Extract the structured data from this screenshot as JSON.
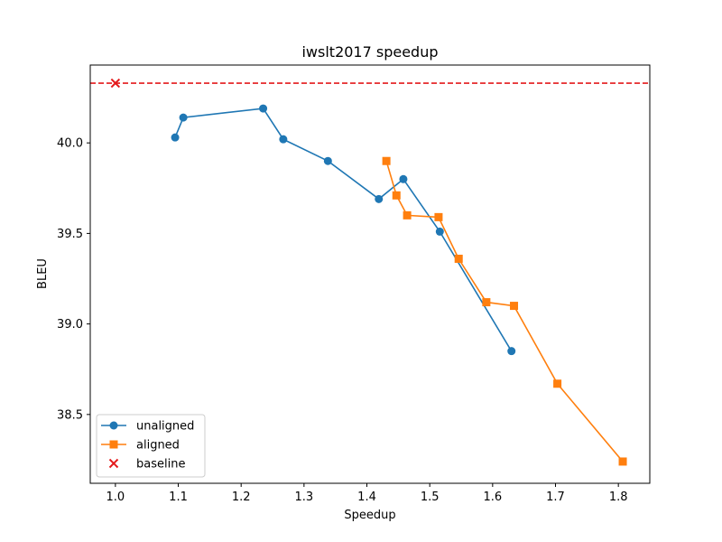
{
  "chart_data": {
    "type": "line",
    "title": "iwslt2017 speedup",
    "xlabel": "Speedup",
    "ylabel": "BLEU",
    "xlim": [
      0.96,
      1.85
    ],
    "ylim": [
      38.12,
      40.43
    ],
    "xticks": [
      "1.0",
      "1.1",
      "1.2",
      "1.3",
      "1.4",
      "1.5",
      "1.6",
      "1.7",
      "1.8"
    ],
    "yticks": [
      "38.5",
      "39.0",
      "39.5",
      "40.0"
    ],
    "grid": false,
    "legend_position": "lower-left",
    "series": [
      {
        "name": "unaligned",
        "marker": "circle",
        "color": "#1f77b4",
        "x": [
          1.095,
          1.108,
          1.235,
          1.267,
          1.338,
          1.419,
          1.458,
          1.516,
          1.63
        ],
        "y": [
          40.03,
          40.14,
          40.19,
          40.02,
          39.9,
          39.69,
          39.8,
          39.51,
          38.85
        ]
      },
      {
        "name": "aligned",
        "marker": "square",
        "color": "#ff7f0e",
        "x": [
          1.431,
          1.447,
          1.464,
          1.514,
          1.546,
          1.59,
          1.634,
          1.703,
          1.807
        ],
        "y": [
          39.9,
          39.71,
          39.6,
          39.59,
          39.36,
          39.12,
          39.1,
          38.67,
          38.24
        ]
      }
    ],
    "baseline": {
      "name": "baseline",
      "marker": "x",
      "color": "#e41a1c",
      "x": 1.0,
      "y": 40.33,
      "line_style": "dashed"
    }
  }
}
